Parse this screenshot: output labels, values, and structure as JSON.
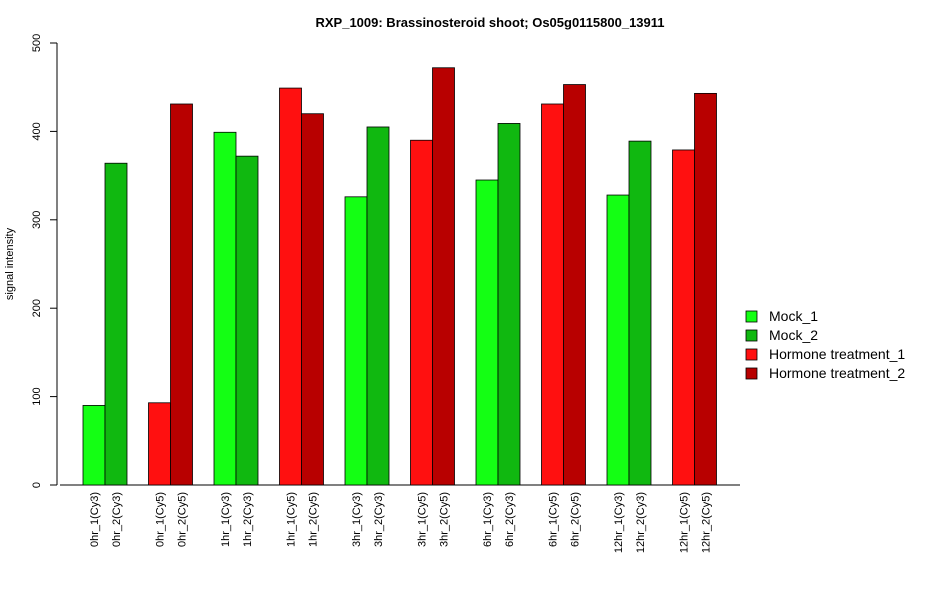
{
  "chart_data": {
    "type": "bar",
    "title": "RXP_1009: Brassinosteroid shoot; Os05g0115800_13911",
    "xlabel": "",
    "ylabel": "signal intensity",
    "ylim": [
      0,
      500
    ],
    "yticks": [
      0,
      100,
      200,
      300,
      400,
      500
    ],
    "grid": false,
    "legend_position": "right",
    "bars": [
      {
        "label": "0hr_1(Cy3)",
        "value": 90,
        "series": "Mock_1"
      },
      {
        "label": "0hr_2(Cy3)",
        "value": 364,
        "series": "Mock_2"
      },
      {
        "label": "0hr_1(Cy5)",
        "value": 93,
        "series": "Hormone treatment_1"
      },
      {
        "label": "0hr_2(Cy5)",
        "value": 431,
        "series": "Hormone treatment_2"
      },
      {
        "label": "1hr_1(Cy3)",
        "value": 399,
        "series": "Mock_1"
      },
      {
        "label": "1hr_2(Cy3)",
        "value": 372,
        "series": "Mock_2"
      },
      {
        "label": "1hr_1(Cy5)",
        "value": 449,
        "series": "Hormone treatment_1"
      },
      {
        "label": "1hr_2(Cy5)",
        "value": 420,
        "series": "Hormone treatment_2"
      },
      {
        "label": "3hr_1(Cy3)",
        "value": 326,
        "series": "Mock_1"
      },
      {
        "label": "3hr_2(Cy3)",
        "value": 405,
        "series": "Mock_2"
      },
      {
        "label": "3hr_1(Cy5)",
        "value": 390,
        "series": "Hormone treatment_1"
      },
      {
        "label": "3hr_2(Cy5)",
        "value": 472,
        "series": "Hormone treatment_2"
      },
      {
        "label": "6hr_1(Cy3)",
        "value": 345,
        "series": "Mock_1"
      },
      {
        "label": "6hr_2(Cy3)",
        "value": 409,
        "series": "Mock_2"
      },
      {
        "label": "6hr_1(Cy5)",
        "value": 431,
        "series": "Hormone treatment_1"
      },
      {
        "label": "6hr_2(Cy5)",
        "value": 453,
        "series": "Hormone treatment_2"
      },
      {
        "label": "12hr_1(Cy3)",
        "value": 328,
        "series": "Mock_1"
      },
      {
        "label": "12hr_2(Cy3)",
        "value": 389,
        "series": "Mock_2"
      },
      {
        "label": "12hr_1(Cy5)",
        "value": 379,
        "series": "Hormone treatment_1"
      },
      {
        "label": "12hr_2(Cy5)",
        "value": 443,
        "series": "Hormone treatment_2"
      }
    ],
    "series": [
      {
        "name": "Mock_1",
        "color": "#14ff14"
      },
      {
        "name": "Mock_2",
        "color": "#10b810"
      },
      {
        "name": "Hormone treatment_1",
        "color": "#ff1010"
      },
      {
        "name": "Hormone treatment_2",
        "color": "#b80000"
      }
    ]
  }
}
